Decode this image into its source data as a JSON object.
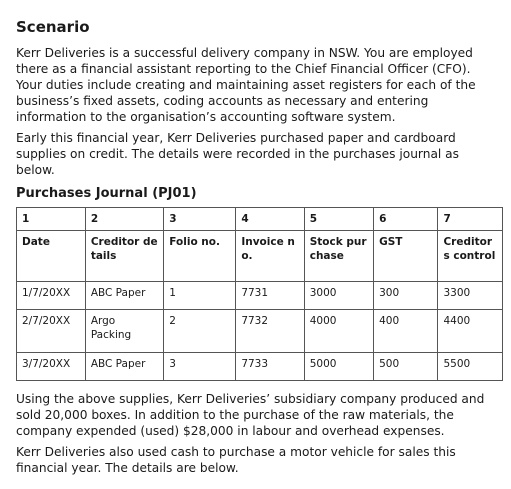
{
  "title": "Scenario",
  "paragraphs": [
    "Kerr Deliveries is a successful delivery company in NSW. You are employed there as a financial assistant reporting to the Chief Financial Officer (CFO). Your duties include creating and maintaining asset registers for each of the business’s fixed assets, coding accounts as necessary and entering information to the organisation’s accounting software system.",
    "Early this financial year, Kerr Deliveries purchased paper and cardboard supplies on credit. The details were recorded in the purchases journal as below."
  ],
  "journal_title": "Purchases Journal (PJ01)",
  "table": {
    "column_numbers": [
      "1",
      "2",
      "3",
      "4",
      "5",
      "6",
      "7"
    ],
    "headers": [
      "Date",
      "Creditor details",
      "Folio no.",
      "Invoice no.",
      "Stock purchase",
      "GST",
      "Creditors control"
    ],
    "rows": [
      [
        "1/7/20XX",
        "ABC Paper",
        "1",
        "7731",
        "3000",
        "300",
        "3300"
      ],
      [
        "2/7/20XX",
        "Argo Packing",
        "2",
        "7732",
        "4000",
        "400",
        "4400"
      ],
      [
        "3/7/20XX",
        "ABC Paper",
        "3",
        "7733",
        "5000",
        "500",
        "5500"
      ]
    ]
  },
  "after_paragraphs": [
    "Using the above supplies, Kerr Deliveries’ subsidiary company produced and sold 20,000 boxes. In addition to the purchase of the raw materials, the company expended (used) $28,000 in labour and overhead expenses.",
    "Kerr Deliveries also used cash to purchase a motor vehicle for sales this financial year. The details are below."
  ]
}
